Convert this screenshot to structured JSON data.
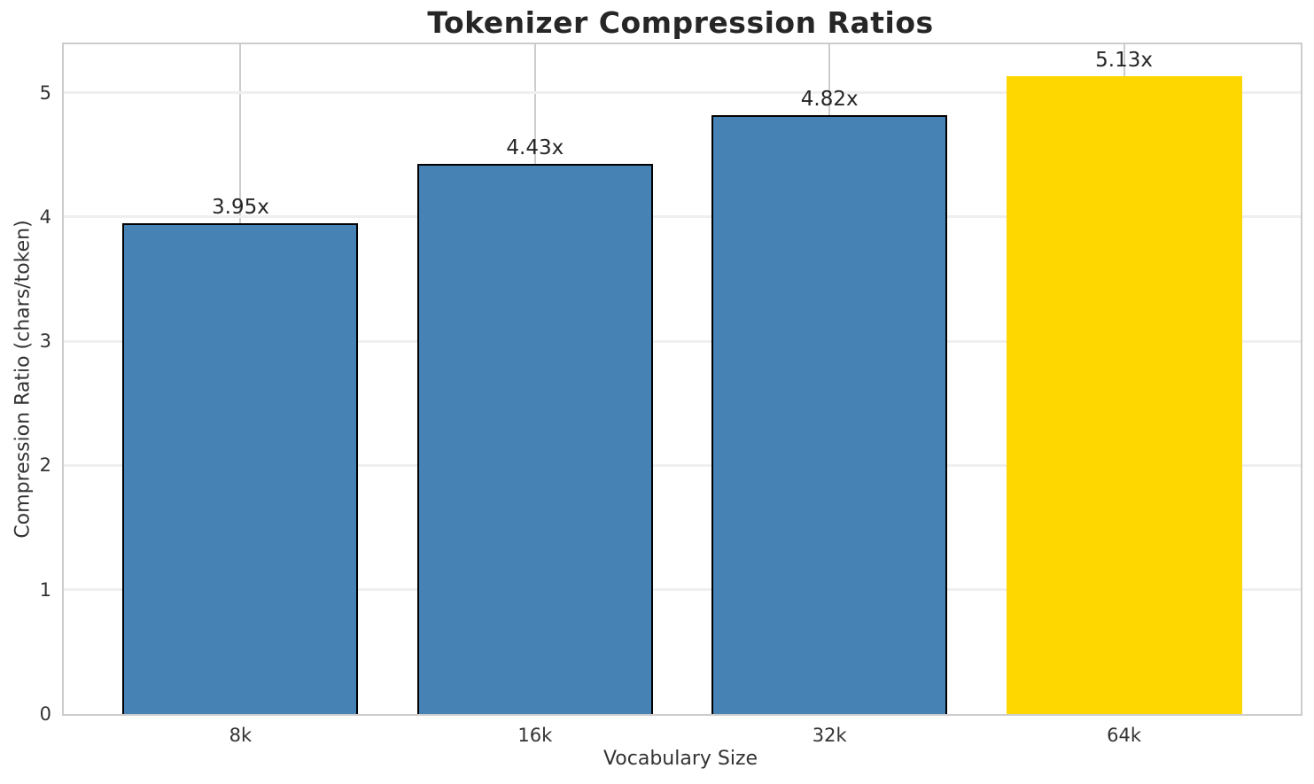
{
  "chart_data": {
    "type": "bar",
    "title": "Tokenizer Compression Ratios",
    "xlabel": "Vocabulary Size",
    "ylabel": "Compression Ratio (chars/token)",
    "categories": [
      "8k",
      "16k",
      "32k",
      "64k"
    ],
    "values": [
      3.95,
      4.43,
      4.82,
      5.13
    ],
    "value_labels": [
      "3.95x",
      "4.43x",
      "4.82x",
      "5.13x"
    ],
    "bar_colors": [
      "#4682B4",
      "#4682B4",
      "#4682B4",
      "#FFD700"
    ],
    "bar_edge_colors": [
      "#000000",
      "#000000",
      "#000000",
      "none"
    ],
    "yticks": [
      0,
      1,
      2,
      3,
      4,
      5
    ],
    "ylim": [
      0,
      5.39
    ],
    "xlim": [
      -0.6,
      3.6
    ],
    "bar_width": 0.8,
    "grid": true,
    "legend": false,
    "colors": {
      "bar_default": "#4682B4",
      "bar_highlight": "#FFD700",
      "grid_horizontal": "#efefef",
      "grid_vertical": "#cccccc",
      "spine": "#cccccc",
      "text": "#262626",
      "tick_text": "#333333",
      "background": "#ffffff"
    }
  }
}
